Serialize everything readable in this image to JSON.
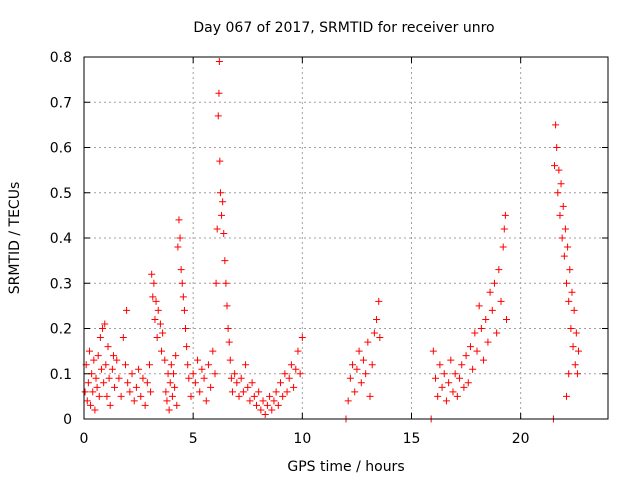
{
  "chart_data": {
    "type": "scatter",
    "title": "Day 067 of 2017, SRMTID for receiver unro",
    "xlabel": "GPS time / hours",
    "ylabel": "SRMTID / TECUs",
    "xlim": [
      0,
      24
    ],
    "ylim": [
      0,
      0.8
    ],
    "xticks": [
      0,
      5,
      10,
      15,
      20
    ],
    "yticks": [
      0,
      0.1,
      0.2,
      0.3,
      0.4,
      0.5,
      0.6,
      0.7,
      0.8
    ],
    "xtick_labels": [
      "0",
      "5",
      "10",
      "15",
      "20"
    ],
    "ytick_labels": [
      "0",
      "0.1",
      "0.2",
      "0.3",
      "0.4",
      "0.5",
      "0.6",
      "0.7",
      "0.8"
    ],
    "grid": true,
    "marker": "+",
    "color": "#ff0000",
    "series": [
      {
        "name": "SRMTID",
        "points": [
          [
            0.05,
            0.06
          ],
          [
            0.1,
            0.12
          ],
          [
            0.15,
            0.04
          ],
          [
            0.2,
            0.08
          ],
          [
            0.25,
            0.15
          ],
          [
            0.3,
            0.03
          ],
          [
            0.35,
            0.1
          ],
          [
            0.4,
            0.06
          ],
          [
            0.45,
            0.13
          ],
          [
            0.5,
            0.02
          ],
          [
            0.55,
            0.09
          ],
          [
            0.6,
            0.07
          ],
          [
            0.65,
            0.14
          ],
          [
            0.7,
            0.05
          ],
          [
            0.75,
            0.18
          ],
          [
            0.8,
            0.11
          ],
          [
            0.85,
            0.2
          ],
          [
            0.9,
            0.08
          ],
          [
            0.95,
            0.21
          ],
          [
            1.0,
            0.12
          ],
          [
            1.05,
            0.05
          ],
          [
            1.1,
            0.16
          ],
          [
            1.15,
            0.09
          ],
          [
            1.2,
            0.03
          ],
          [
            1.3,
            0.11
          ],
          [
            1.35,
            0.14
          ],
          [
            1.4,
            0.07
          ],
          [
            1.5,
            0.13
          ],
          [
            1.6,
            0.09
          ],
          [
            1.7,
            0.05
          ],
          [
            1.8,
            0.18
          ],
          [
            1.9,
            0.12
          ],
          [
            1.95,
            0.24
          ],
          [
            2.0,
            0.08
          ],
          [
            2.1,
            0.06
          ],
          [
            2.2,
            0.1
          ],
          [
            2.3,
            0.04
          ],
          [
            2.4,
            0.07
          ],
          [
            2.5,
            0.11
          ],
          [
            2.6,
            0.05
          ],
          [
            2.7,
            0.09
          ],
          [
            2.8,
            0.03
          ],
          [
            2.9,
            0.08
          ],
          [
            3.0,
            0.12
          ],
          [
            3.05,
            0.06
          ],
          [
            3.1,
            0.32
          ],
          [
            3.15,
            0.27
          ],
          [
            3.2,
            0.3
          ],
          [
            3.25,
            0.22
          ],
          [
            3.3,
            0.26
          ],
          [
            3.35,
            0.18
          ],
          [
            3.4,
            0.24
          ],
          [
            3.5,
            0.21
          ],
          [
            3.55,
            0.15
          ],
          [
            3.6,
            0.19
          ],
          [
            3.7,
            0.13
          ],
          [
            3.75,
            0.06
          ],
          [
            3.8,
            0.04
          ],
          [
            3.85,
            0.1
          ],
          [
            3.9,
            0.02
          ],
          [
            3.95,
            0.08
          ],
          [
            4.0,
            0.12
          ],
          [
            4.05,
            0.05
          ],
          [
            4.1,
            0.1
          ],
          [
            4.15,
            0.07
          ],
          [
            4.2,
            0.14
          ],
          [
            4.25,
            0.03
          ],
          [
            4.3,
            0.38
          ],
          [
            4.35,
            0.44
          ],
          [
            4.4,
            0.4
          ],
          [
            4.45,
            0.33
          ],
          [
            4.5,
            0.3
          ],
          [
            4.55,
            0.27
          ],
          [
            4.6,
            0.24
          ],
          [
            4.65,
            0.2
          ],
          [
            4.7,
            0.16
          ],
          [
            4.75,
            0.12
          ],
          [
            4.8,
            0.09
          ],
          [
            4.9,
            0.05
          ],
          [
            5.0,
            0.1
          ],
          [
            5.1,
            0.08
          ],
          [
            5.2,
            0.13
          ],
          [
            5.3,
            0.06
          ],
          [
            5.4,
            0.11
          ],
          [
            5.5,
            0.09
          ],
          [
            5.6,
            0.04
          ],
          [
            5.7,
            0.12
          ],
          [
            5.8,
            0.07
          ],
          [
            5.9,
            0.15
          ],
          [
            6.0,
            0.1
          ],
          [
            6.05,
            0.3
          ],
          [
            6.1,
            0.42
          ],
          [
            6.15,
            0.67
          ],
          [
            6.18,
            0.72
          ],
          [
            6.2,
            0.79
          ],
          [
            6.22,
            0.57
          ],
          [
            6.25,
            0.5
          ],
          [
            6.3,
            0.45
          ],
          [
            6.35,
            0.48
          ],
          [
            6.4,
            0.41
          ],
          [
            6.45,
            0.35
          ],
          [
            6.5,
            0.3
          ],
          [
            6.55,
            0.25
          ],
          [
            6.6,
            0.2
          ],
          [
            6.65,
            0.17
          ],
          [
            6.7,
            0.13
          ],
          [
            6.75,
            0.09
          ],
          [
            6.8,
            0.06
          ],
          [
            6.9,
            0.1
          ],
          [
            7.0,
            0.08
          ],
          [
            7.1,
            0.05
          ],
          [
            7.2,
            0.09
          ],
          [
            7.3,
            0.06
          ],
          [
            7.4,
            0.12
          ],
          [
            7.5,
            0.07
          ],
          [
            7.6,
            0.04
          ],
          [
            7.7,
            0.08
          ],
          [
            7.8,
            0.05
          ],
          [
            7.9,
            0.03
          ],
          [
            8.0,
            0.06
          ],
          [
            8.1,
            0.02
          ],
          [
            8.2,
            0.04
          ],
          [
            8.3,
            0.01
          ],
          [
            8.4,
            0.03
          ],
          [
            8.5,
            0.05
          ],
          [
            8.6,
            0.02
          ],
          [
            8.7,
            0.04
          ],
          [
            8.8,
            0.06
          ],
          [
            8.9,
            0.03
          ],
          [
            9.0,
            0.08
          ],
          [
            9.1,
            0.05
          ],
          [
            9.2,
            0.1
          ],
          [
            9.3,
            0.06
          ],
          [
            9.4,
            0.09
          ],
          [
            9.5,
            0.12
          ],
          [
            9.6,
            0.07
          ],
          [
            9.7,
            0.11
          ],
          [
            9.8,
            0.15
          ],
          [
            9.9,
            0.1
          ],
          [
            10.0,
            0.18
          ],
          [
            12.0,
            0.0
          ],
          [
            12.1,
            0.04
          ],
          [
            12.2,
            0.09
          ],
          [
            12.3,
            0.12
          ],
          [
            12.4,
            0.06
          ],
          [
            12.5,
            0.11
          ],
          [
            12.6,
            0.15
          ],
          [
            12.7,
            0.08
          ],
          [
            12.8,
            0.13
          ],
          [
            12.9,
            0.1
          ],
          [
            13.0,
            0.17
          ],
          [
            13.1,
            0.05
          ],
          [
            13.2,
            0.12
          ],
          [
            13.3,
            0.19
          ],
          [
            13.4,
            0.22
          ],
          [
            13.5,
            0.26
          ],
          [
            13.55,
            0.18
          ],
          [
            15.9,
            0.0
          ],
          [
            16.0,
            0.15
          ],
          [
            16.1,
            0.09
          ],
          [
            16.2,
            0.05
          ],
          [
            16.3,
            0.12
          ],
          [
            16.4,
            0.07
          ],
          [
            16.5,
            0.1
          ],
          [
            16.6,
            0.04
          ],
          [
            16.7,
            0.08
          ],
          [
            16.8,
            0.13
          ],
          [
            16.9,
            0.06
          ],
          [
            17.0,
            0.1
          ],
          [
            17.1,
            0.05
          ],
          [
            17.2,
            0.09
          ],
          [
            17.3,
            0.12
          ],
          [
            17.4,
            0.07
          ],
          [
            17.5,
            0.14
          ],
          [
            17.6,
            0.08
          ],
          [
            17.7,
            0.16
          ],
          [
            17.8,
            0.11
          ],
          [
            17.9,
            0.19
          ],
          [
            18.0,
            0.15
          ],
          [
            18.1,
            0.25
          ],
          [
            18.2,
            0.2
          ],
          [
            18.3,
            0.13
          ],
          [
            18.4,
            0.22
          ],
          [
            18.5,
            0.17
          ],
          [
            18.6,
            0.28
          ],
          [
            18.7,
            0.24
          ],
          [
            18.8,
            0.3
          ],
          [
            18.9,
            0.19
          ],
          [
            19.0,
            0.33
          ],
          [
            19.1,
            0.26
          ],
          [
            19.2,
            0.38
          ],
          [
            19.25,
            0.42
          ],
          [
            19.3,
            0.45
          ],
          [
            19.35,
            0.22
          ],
          [
            21.5,
            0.0
          ],
          [
            21.55,
            0.56
          ],
          [
            21.6,
            0.65
          ],
          [
            21.65,
            0.6
          ],
          [
            21.7,
            0.5
          ],
          [
            21.75,
            0.55
          ],
          [
            21.8,
            0.45
          ],
          [
            21.85,
            0.52
          ],
          [
            21.9,
            0.4
          ],
          [
            21.95,
            0.47
          ],
          [
            22.0,
            0.36
          ],
          [
            22.05,
            0.42
          ],
          [
            22.1,
            0.3
          ],
          [
            22.15,
            0.38
          ],
          [
            22.2,
            0.26
          ],
          [
            22.25,
            0.33
          ],
          [
            22.3,
            0.2
          ],
          [
            22.35,
            0.28
          ],
          [
            22.4,
            0.16
          ],
          [
            22.45,
            0.24
          ],
          [
            22.5,
            0.12
          ],
          [
            22.55,
            0.19
          ],
          [
            22.6,
            0.1
          ],
          [
            22.65,
            0.15
          ],
          [
            22.1,
            0.05
          ],
          [
            22.2,
            0.1
          ]
        ]
      }
    ]
  }
}
